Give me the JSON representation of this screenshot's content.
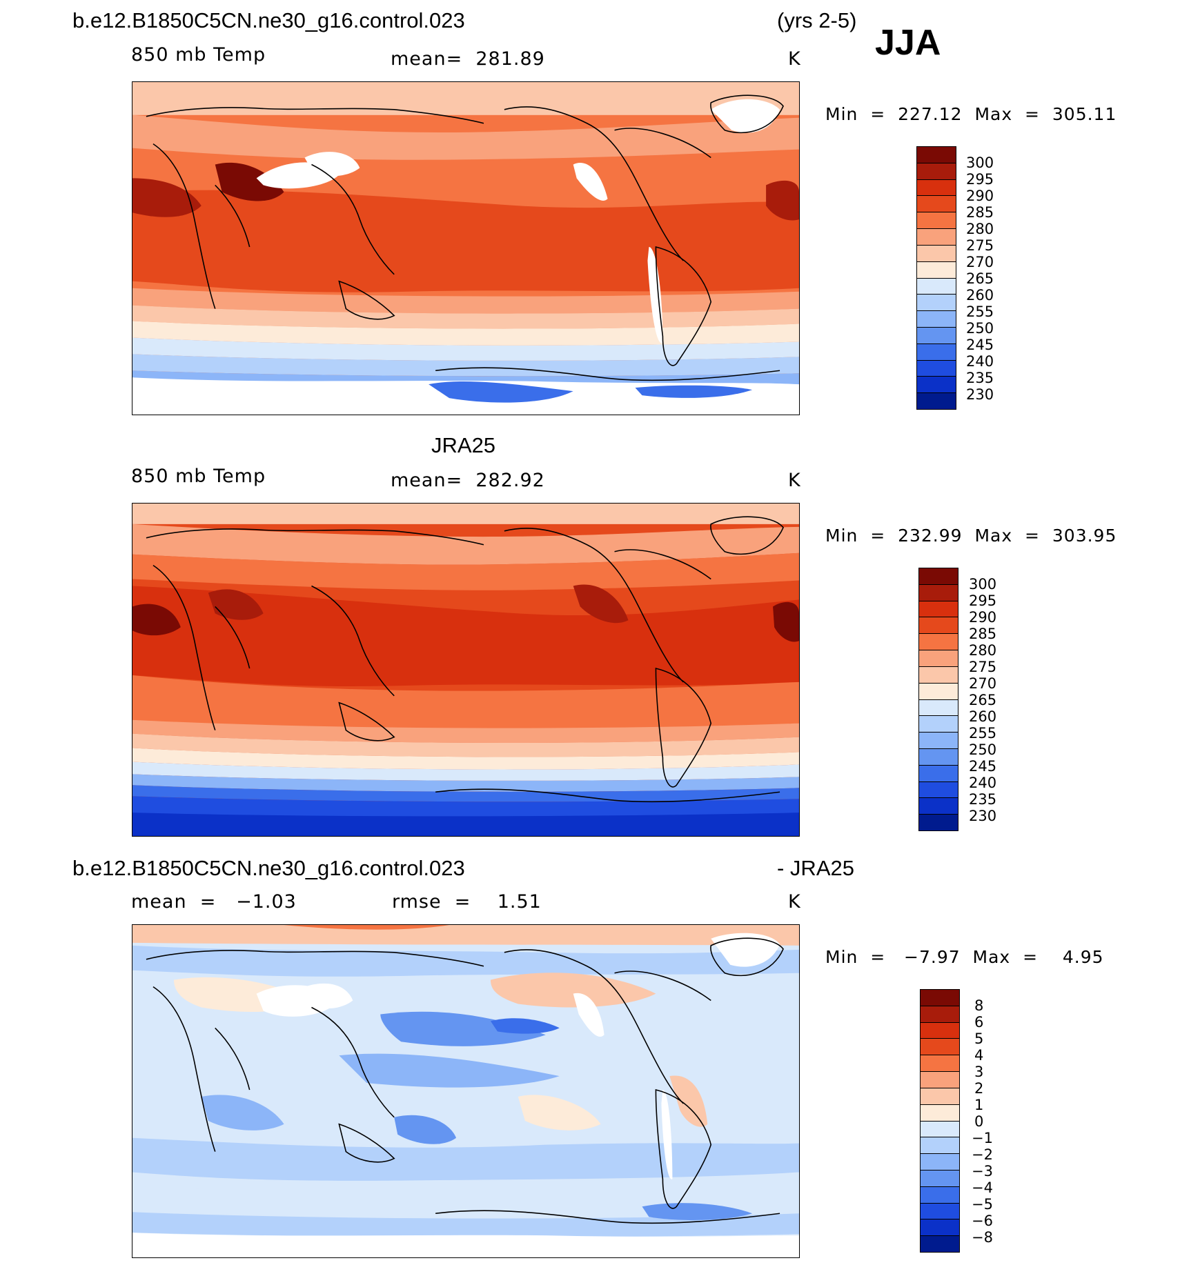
{
  "header": {
    "case_name": "b.e12.B1850C5CN.ne30_g16.control.023",
    "years": "(yrs 2-5)",
    "season": "JJA"
  },
  "panels": [
    {
      "title": "",
      "variable": "850 mb Temp",
      "stat1": "mean=  281.89",
      "stat2": "",
      "units": "K",
      "minmax": "Min  =  227.12  Max  =  305.11",
      "colorbar_labels": [
        "300",
        "295",
        "290",
        "285",
        "280",
        "275",
        "270",
        "265",
        "260",
        "255",
        "250",
        "245",
        "240",
        "235",
        "230"
      ]
    },
    {
      "title": "JRA25",
      "variable": "850 mb Temp",
      "stat1": "mean=  282.92",
      "stat2": "",
      "units": "K",
      "minmax": "Min  =  232.99  Max  =  303.95",
      "colorbar_labels": [
        "300",
        "295",
        "290",
        "285",
        "280",
        "275",
        "270",
        "265",
        "260",
        "255",
        "250",
        "245",
        "240",
        "235",
        "230"
      ]
    },
    {
      "title": "b.e12.B1850C5CN.ne30_g16.control.023",
      "title_right": "- JRA25",
      "variable": "",
      "stat1": "mean  =   −1.03",
      "stat2": "rmse  =    1.51",
      "units": "K",
      "minmax": "Min  =   −7.97  Max  =    4.95",
      "colorbar_labels": [
        "8",
        "6",
        "5",
        "4",
        "3",
        "2",
        "1",
        "0",
        "−1",
        "−2",
        "−3",
        "−4",
        "−5",
        "−6",
        "−8"
      ]
    }
  ],
  "colors": {
    "temp_scale": [
      "#7a0a04",
      "#a81c0b",
      "#d8300e",
      "#e5491c",
      "#f57442",
      "#f9a27c",
      "#fbc7aa",
      "#fdebd9",
      "#d9e9fb",
      "#b3d1fb",
      "#8cb5f8",
      "#6495f1",
      "#3a6eea",
      "#1f4de0",
      "#0b31c8",
      "#001b8e"
    ],
    "diff_scale": [
      "#7a0a04",
      "#a81c0b",
      "#d8300e",
      "#e5491c",
      "#f57442",
      "#f9a27c",
      "#fbc7aa",
      "#fdebd9",
      "#d9e9fb",
      "#b3d1fb",
      "#8cb5f8",
      "#6495f1",
      "#3a6eea",
      "#1f4de0",
      "#0b31c8",
      "#001b8e"
    ]
  }
}
